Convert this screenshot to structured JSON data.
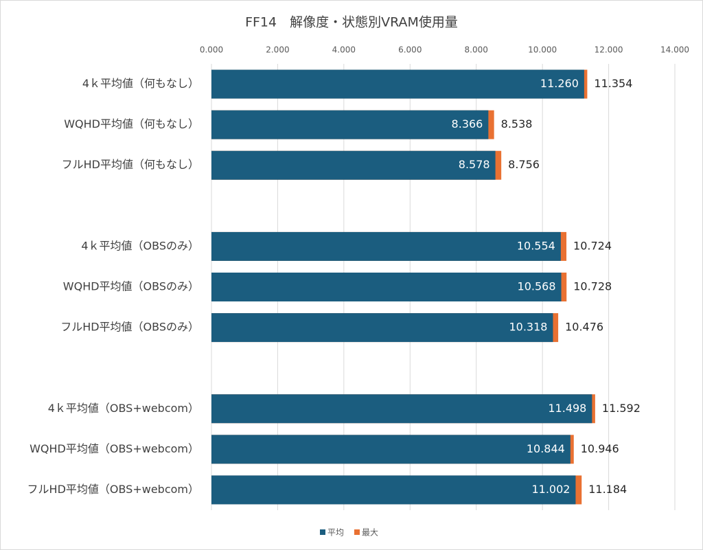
{
  "chart_data": {
    "type": "bar",
    "title": "FF14　解像度・状態別VRAM使用量",
    "orientation": "horizontal",
    "overlap": true,
    "categories": [
      "4ｋ平均値（何もなし）",
      "WQHD平均値（何もなし）",
      "フルHD平均値（何もなし）",
      null,
      "4ｋ平均値（OBSのみ）",
      "WQHD平均値（OBSのみ）",
      "フルHD平均値（OBSのみ）",
      null,
      "4ｋ平均値（OBS+webcom）",
      "WQHD平均値（OBS+webcom）",
      "フルHD平均値（OBS+webcom）"
    ],
    "series": [
      {
        "name": "平均",
        "color": "#1b5d7f",
        "values": [
          11.26,
          8.366,
          8.578,
          null,
          10.554,
          10.568,
          10.318,
          null,
          11.498,
          10.844,
          11.002
        ],
        "value_labels": [
          "11.260",
          "8.366",
          "8.578",
          null,
          "10.554",
          "10.568",
          "10.318",
          null,
          "11.498",
          "10.844",
          "11.002"
        ]
      },
      {
        "name": "最大",
        "color": "#e97132",
        "values": [
          11.354,
          8.538,
          8.756,
          null,
          10.724,
          10.728,
          10.476,
          null,
          11.592,
          10.946,
          11.184
        ],
        "value_labels": [
          "11.354",
          "8.538",
          "8.756",
          null,
          "10.724",
          "10.728",
          "10.476",
          null,
          "11.592",
          "10.946",
          "11.184"
        ]
      }
    ],
    "xlim": [
      0,
      14
    ],
    "xticks": [
      {
        "value": 0,
        "label": "0.000"
      },
      {
        "value": 2,
        "label": "2.000"
      },
      {
        "value": 4,
        "label": "4.000"
      },
      {
        "value": 6,
        "label": "6.000"
      },
      {
        "value": 8,
        "label": "8.000"
      },
      {
        "value": 10,
        "label": "10.000"
      },
      {
        "value": 12,
        "label": "12.000"
      },
      {
        "value": 14,
        "label": "14.000"
      }
    ],
    "grid": true,
    "legend": "bottom"
  }
}
